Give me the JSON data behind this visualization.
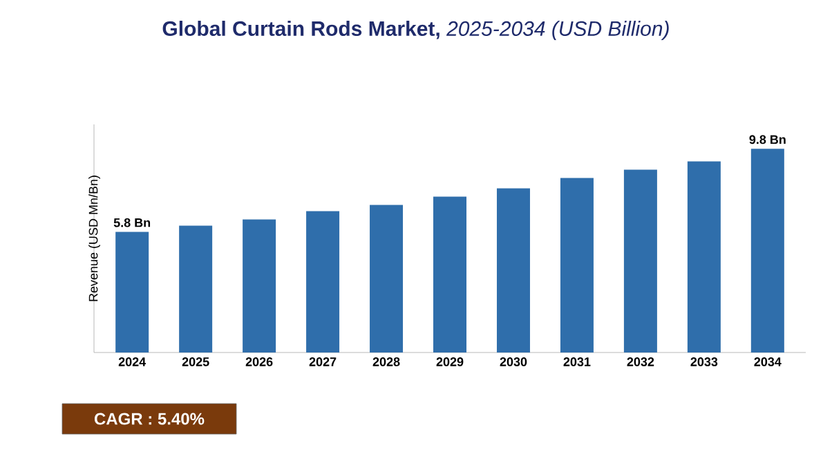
{
  "chart_data": {
    "type": "bar",
    "title": "**Global Curtain Rods Market,** *2025-2034 (USD Billion)*",
    "ylabel": "Revenue (USD Mn/Bn)",
    "categories": [
      "2024",
      "2025",
      "2026",
      "2027",
      "2028",
      "2029",
      "2030",
      "2031",
      "2032",
      "2033",
      "2034"
    ],
    "values": [
      5.8,
      6.1,
      6.4,
      6.8,
      7.1,
      7.5,
      7.9,
      8.4,
      8.8,
      9.2,
      9.8
    ],
    "value_labels": [
      "5.8 Bn",
      null,
      null,
      null,
      null,
      null,
      null,
      null,
      null,
      null,
      "9.8 Bn"
    ],
    "color": "#2f6eab",
    "annotations": [
      "CAGR : 5.40%"
    ]
  }
}
